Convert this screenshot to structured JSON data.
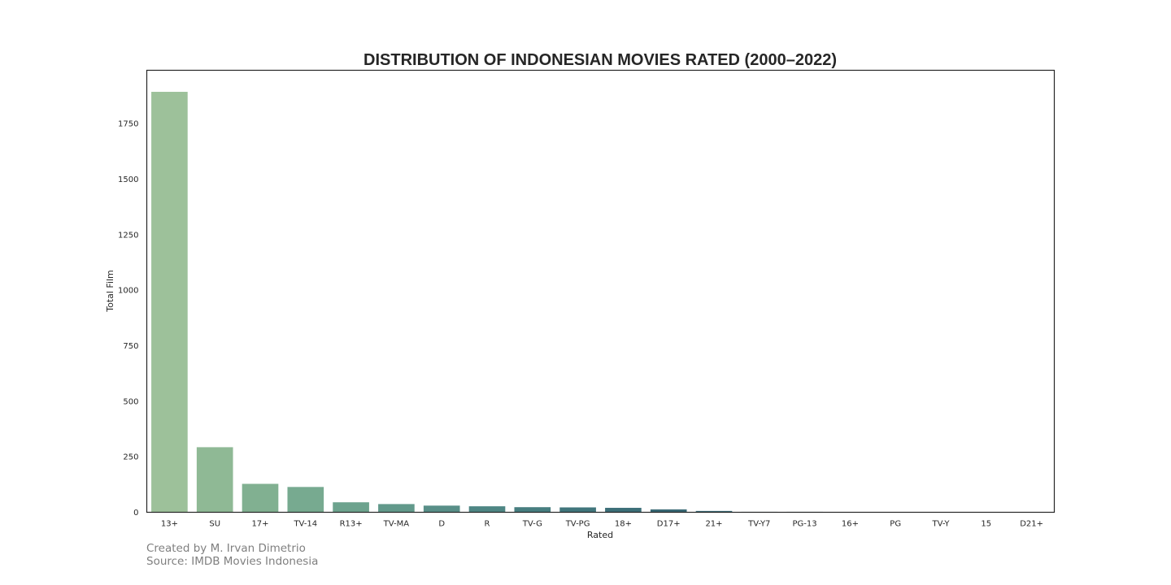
{
  "chart_data": {
    "type": "bar",
    "title": "DISTRIBUTION OF INDONESIAN MOVIES RATED (2000–2022)",
    "xlabel": "Rated",
    "ylabel": "Total Film",
    "categories": [
      "13+",
      "SU",
      "17+",
      "TV-14",
      "R13+",
      "TV-MA",
      "D",
      "R",
      "TV-G",
      "TV-PG",
      "18+",
      "D17+",
      "21+",
      "TV-Y7",
      "PG-13",
      "16+",
      "PG",
      "TV-Y",
      "15",
      "D21+"
    ],
    "values": [
      1893,
      293,
      128,
      114,
      45,
      37,
      30,
      27,
      23,
      22,
      20,
      13,
      6,
      2,
      2,
      1,
      1,
      1,
      1,
      1
    ],
    "ylim": [
      0,
      1990
    ],
    "yticks": [
      0,
      250,
      500,
      750,
      1000,
      1250,
      1500,
      1750
    ],
    "grid": false,
    "palette": [
      "#9dc19a",
      "#8fb995",
      "#81b091",
      "#77aa90",
      "#6da38e",
      "#62998b",
      "#588f88",
      "#4e8684",
      "#477e80",
      "#41767c",
      "#3c6f78",
      "#386874"
    ]
  },
  "credits": {
    "line1": "Created by M. Irvan Dimetrio",
    "line2": "Source: IMDB Movies Indonesia"
  }
}
